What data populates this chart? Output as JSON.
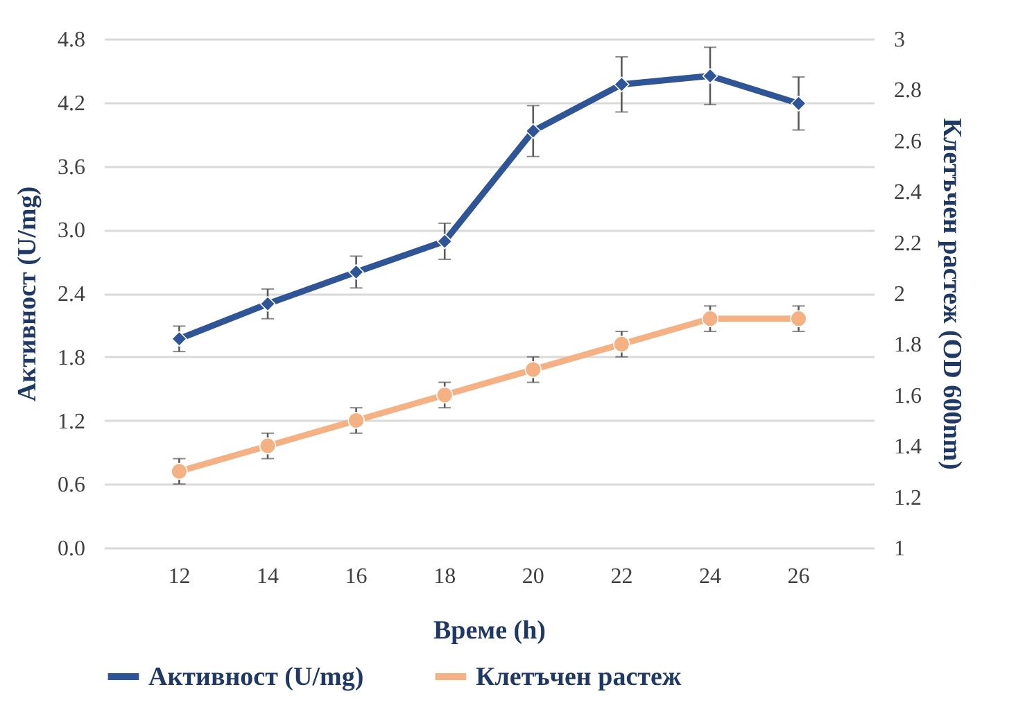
{
  "chart_data": {
    "type": "line",
    "xlabel": "Време (h)",
    "ylabel": "Активност (U/mg)",
    "y2label": "Клетъчен растеж (OD 600nm)",
    "categories": [
      "12",
      "14",
      "16",
      "18",
      "20",
      "22",
      "24",
      "26"
    ],
    "series": [
      {
        "name": "Активност (U/mg)",
        "color": "#2f5597",
        "marker": "diamond",
        "values": [
          1.97,
          2.3,
          2.6,
          2.89,
          3.93,
          4.37,
          4.45,
          4.19
        ],
        "errors": [
          0.12,
          0.14,
          0.15,
          0.17,
          0.24,
          0.26,
          0.27,
          0.25
        ]
      },
      {
        "name": "Клетъчен растеж",
        "color": "#f4b183",
        "marker": "circle",
        "axis": "y2",
        "values": [
          1.3,
          1.4,
          1.5,
          1.6,
          1.7,
          1.8,
          1.9,
          1.9
        ],
        "errors": [
          0.05,
          0.05,
          0.05,
          0.05,
          0.05,
          0.05,
          0.05,
          0.05
        ]
      }
    ],
    "ylim": [
      0,
      4.8
    ],
    "yticks": [
      {
        "value": 0,
        "label": "0.0"
      },
      0.6,
      1.2,
      1.8,
      2.4,
      {
        "value": 3,
        "label": "3.0"
      },
      3.6,
      4.2,
      4.8
    ],
    "y2lim": [
      1,
      3
    ],
    "y2ticks": [
      1,
      1.2,
      1.4,
      1.6,
      1.8,
      2,
      2.2,
      2.4,
      2.6,
      2.8,
      3
    ],
    "grid": "y",
    "legend": "bottom",
    "line_style": "solid"
  }
}
